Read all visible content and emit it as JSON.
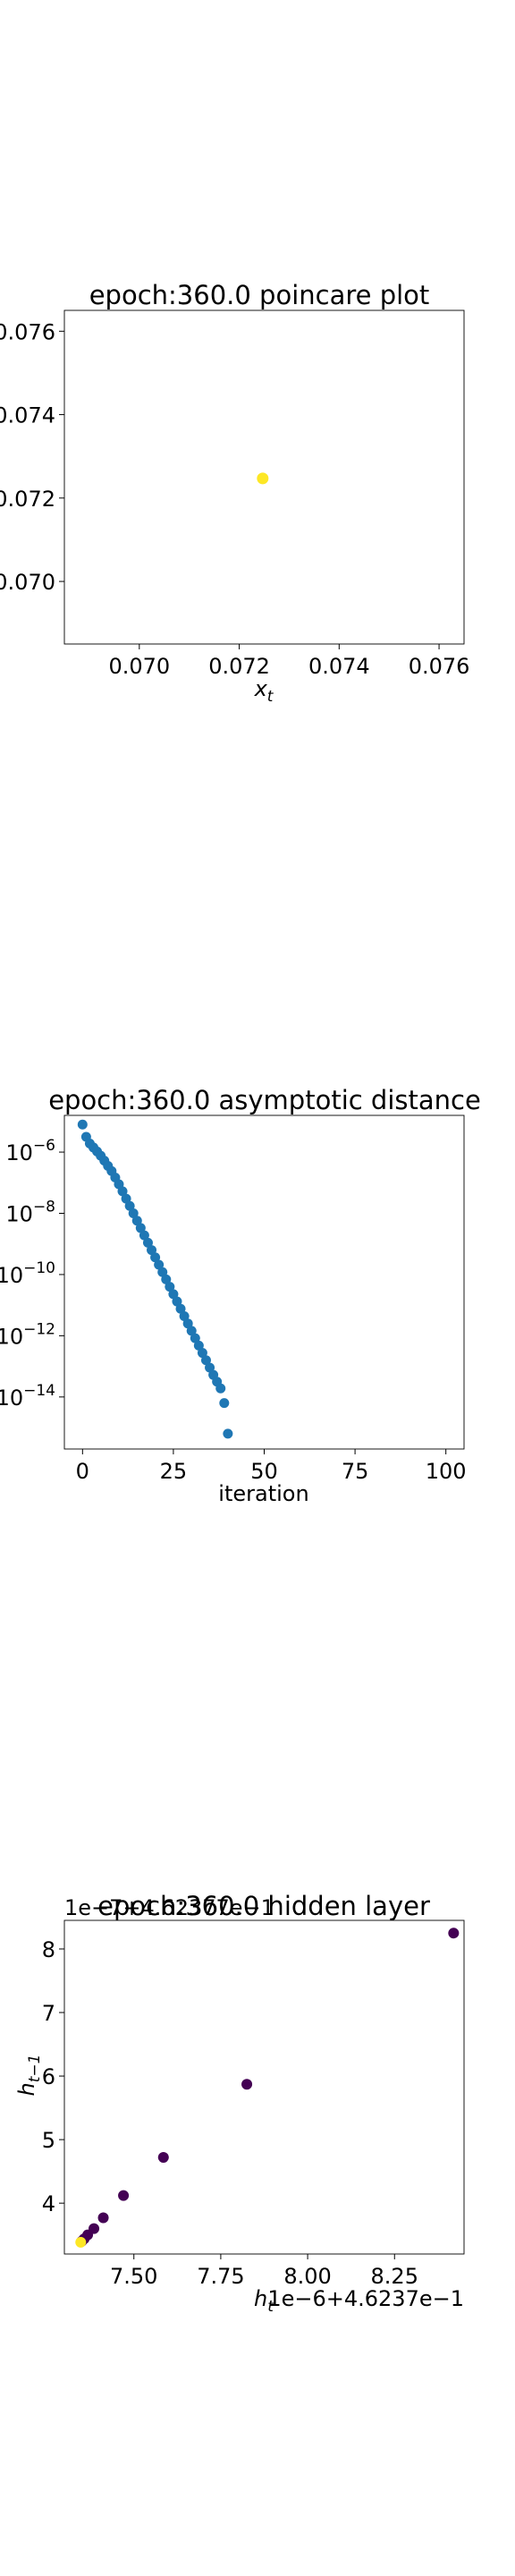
{
  "chart_data": [
    {
      "type": "scatter",
      "title": "epoch:360.0 poincare plot",
      "xlabel": "x_t",
      "ylabel": "",
      "xlim": [
        0.0685,
        0.0765
      ],
      "ylim": [
        0.0685,
        0.0765
      ],
      "scale": "linear",
      "xticks": [
        0.07,
        0.072,
        0.074,
        0.076
      ],
      "xtick_labels": [
        "0.070",
        "0.072",
        "0.074",
        "0.076"
      ],
      "yticks": [
        0.07,
        0.072,
        0.074,
        0.076
      ],
      "ytick_labels": [
        "0.070",
        "0.072",
        "0.074",
        "0.076"
      ],
      "point_color": "#fde725",
      "points": [
        {
          "x": 0.07247,
          "y": 0.07247
        }
      ]
    },
    {
      "type": "scatter",
      "title": "epoch:360.0 asymptotic distance",
      "xlabel": "iteration",
      "ylabel": "",
      "xlim": [
        -5,
        105
      ],
      "ylim_exp": [
        -15.7,
        -4.8
      ],
      "yscale": "log",
      "xticks": [
        0,
        25,
        50,
        75,
        100
      ],
      "xtick_labels": [
        "0",
        "25",
        "50",
        "75",
        "100"
      ],
      "yticks_exp": [
        -6,
        -8,
        -10,
        -12,
        -14
      ],
      "ytick_labels": [
        "10^-6",
        "10^-8",
        "10^-10",
        "10^-12",
        "10^-14"
      ],
      "point_color": "#1f77b4",
      "y_exp": [
        -5.1,
        -5.5,
        -5.72,
        -5.85,
        -5.98,
        -6.12,
        -6.28,
        -6.45,
        -6.62,
        -6.83,
        -7.05,
        -7.28,
        -7.52,
        -7.76,
        -8.0,
        -8.24,
        -8.48,
        -8.72,
        -8.96,
        -9.2,
        -9.44,
        -9.68,
        -9.92,
        -10.16,
        -10.4,
        -10.64,
        -10.88,
        -11.12,
        -11.36,
        -11.6,
        -11.84,
        -12.08,
        -12.32,
        -12.56,
        -12.8,
        -13.04,
        -13.28,
        -13.5,
        -13.72,
        -14.2,
        -15.2
      ]
    },
    {
      "type": "scatter",
      "title": "epoch:360.0 hidden layer",
      "xlabel": "h_t",
      "ylabel": "h_{t-1}",
      "x_offset_label": "1e−6+4.6237e−1",
      "y_offset_label": "1e−7+4.62377e−1",
      "xlim": [
        7.3,
        8.45
      ],
      "ylim": [
        3.2,
        8.45
      ],
      "xticks": [
        7.5,
        7.75,
        8.0,
        8.25
      ],
      "xtick_labels": [
        "7.50",
        "7.75",
        "8.00",
        "8.25"
      ],
      "yticks": [
        4,
        5,
        6,
        7,
        8
      ],
      "ytick_labels": [
        "4",
        "5",
        "6",
        "7",
        "8"
      ],
      "colors": [
        "#440154",
        "#fde725"
      ],
      "points": [
        {
          "x": 8.42,
          "y": 8.25,
          "c": 0
        },
        {
          "x": 7.825,
          "y": 5.87,
          "c": 0
        },
        {
          "x": 7.585,
          "y": 4.72,
          "c": 0
        },
        {
          "x": 7.47,
          "y": 4.12,
          "c": 0
        },
        {
          "x": 7.412,
          "y": 3.77,
          "c": 0
        },
        {
          "x": 7.385,
          "y": 3.6,
          "c": 0
        },
        {
          "x": 7.367,
          "y": 3.5,
          "c": 0
        },
        {
          "x": 7.357,
          "y": 3.44,
          "c": 0
        },
        {
          "x": 7.35,
          "y": 3.4,
          "c": 0
        },
        {
          "x": 7.347,
          "y": 3.385,
          "c": 1
        }
      ]
    }
  ]
}
